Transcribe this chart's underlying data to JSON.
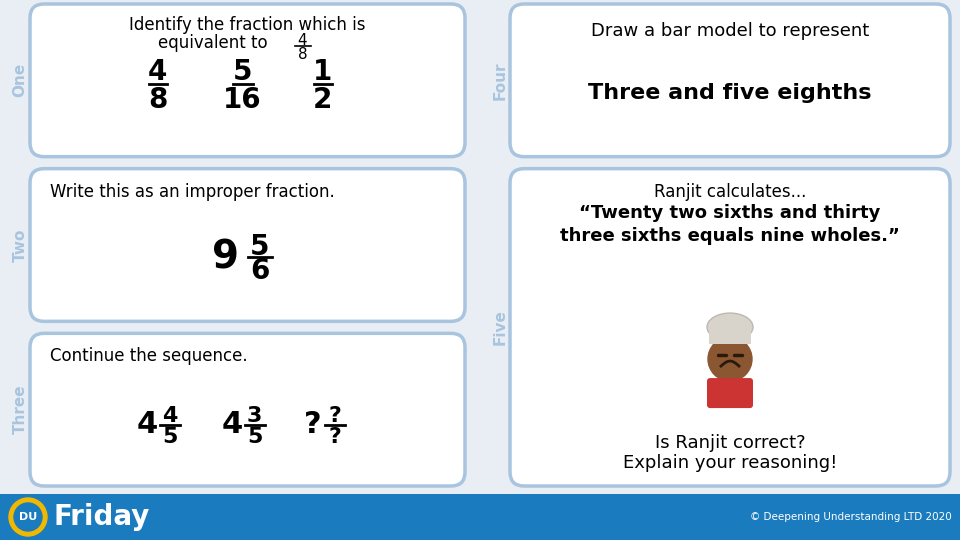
{
  "bg_color": "#e8eef4",
  "card_bg": "#ffffff",
  "card_border": "#a8c4de",
  "footer_bg": "#1a7bbf",
  "footer_text_color": "#ffffff",
  "footer_day": "Friday",
  "footer_copyright": "© Deepening Understanding LTD 2020",
  "tab_one_text": "One",
  "tab_two_text": "Two",
  "tab_three_text": "Three",
  "tab_four_text": "Four",
  "tab_five_text": "Five",
  "card1_line1": "Identify the fraction which is",
  "card1_line2": "equivalent to",
  "card2_title": "Draw a bar model to represent",
  "card2_subtitle": "Three and five eighths",
  "card3_line1": "Write this as an improper fraction.",
  "card4_line1": "Ranjit calculates...",
  "card4_line2": "“Twenty two sixths and thirty",
  "card4_line3": "three sixths equals nine wholes.”",
  "card4_line4": "Is Ranjit correct?",
  "card4_line5": "Explain your reasoning!",
  "card5_line1": "Continue the sequence."
}
